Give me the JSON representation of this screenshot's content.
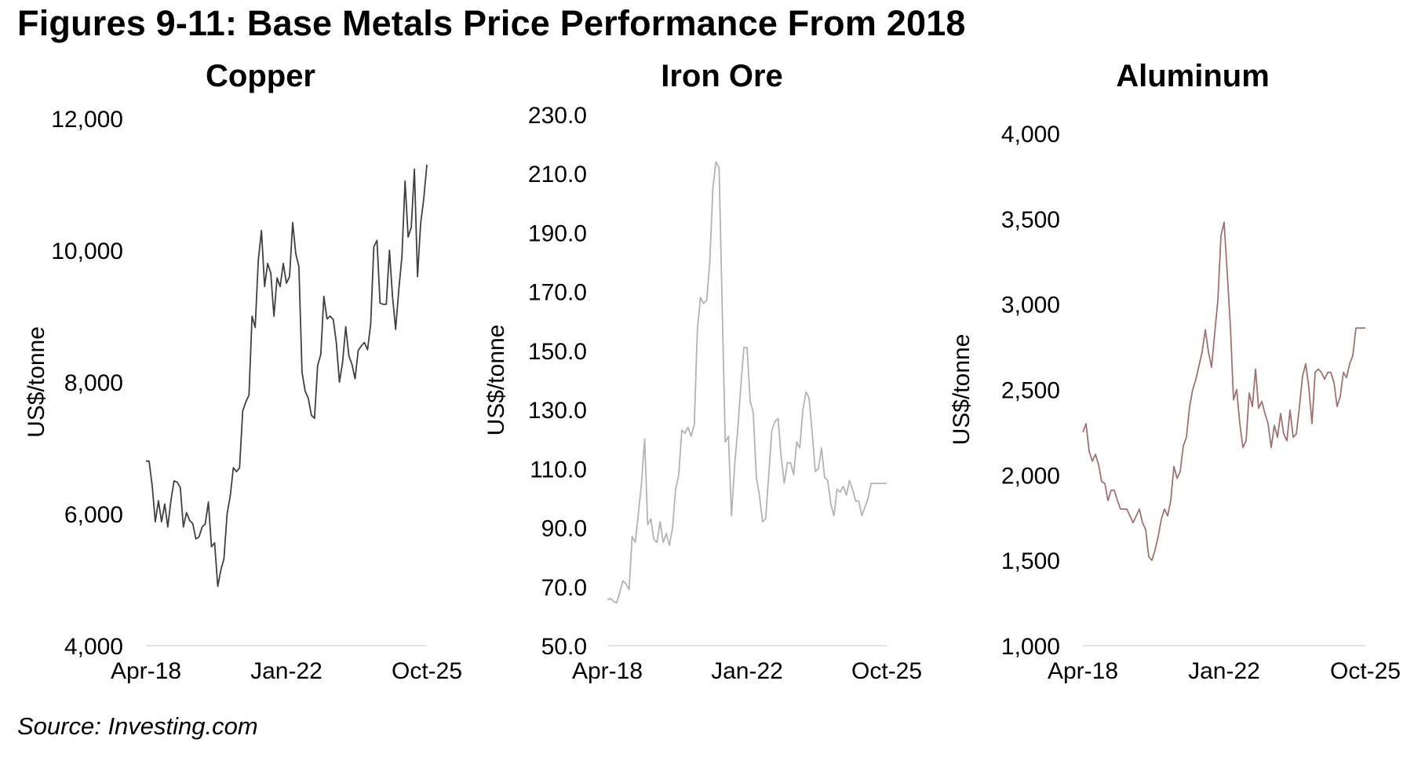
{
  "title": "Figures 9-11: Base Metals Price Performance From 2018",
  "source": "Source: Investing.com",
  "chart_data": [
    {
      "type": "line",
      "title": "Copper",
      "ylabel": "US$/tonne",
      "xlabel": "",
      "color": "#404040",
      "ylim": [
        4000,
        12000
      ],
      "yticks": [
        4000,
        6000,
        8000,
        10000,
        12000
      ],
      "ytick_labels": [
        "4,000",
        "6,000",
        "8,000",
        "10,000",
        "12,000"
      ],
      "xticks": [
        0,
        45,
        90
      ],
      "xtick_labels": [
        "Apr-18",
        "Jan-22",
        "Oct-25"
      ],
      "x_count": 91,
      "values": [
        6800,
        6800,
        6420,
        5880,
        6200,
        5880,
        6150,
        5800,
        6200,
        6500,
        6480,
        6400,
        5800,
        6020,
        5900,
        5850,
        5620,
        5650,
        5800,
        5850,
        6180,
        5500,
        5560,
        4900,
        5150,
        5320,
        6000,
        6270,
        6700,
        6640,
        6700,
        7560,
        7700,
        7800,
        9000,
        8830,
        9850,
        10300,
        9450,
        9800,
        9650,
        9000,
        9580,
        9450,
        9800,
        9500,
        9600,
        10420,
        9950,
        9750,
        8150,
        7860,
        7760,
        7500,
        7450,
        8250,
        8420,
        9300,
        8960,
        9000,
        8950,
        8600,
        8000,
        8300,
        8840,
        8400,
        8270,
        8050,
        8480,
        8550,
        8600,
        8490,
        8880,
        10050,
        10150,
        9200,
        9180,
        9180,
        10000,
        9300,
        8800,
        9400,
        9900,
        11050,
        10200,
        10350,
        11230,
        9600,
        10400,
        10780,
        11300
      ]
    },
    {
      "type": "line",
      "title": "Iron Ore",
      "ylabel": "US$/tonne",
      "xlabel": "",
      "color": "#b3b3b3",
      "ylim": [
        50,
        230
      ],
      "yticks": [
        50,
        70,
        90,
        110,
        130,
        150,
        170,
        190,
        210,
        230
      ],
      "ytick_labels": [
        "50.0",
        "70.0",
        "90.0",
        "110.0",
        "130.0",
        "150.0",
        "170.0",
        "190.0",
        "210.0",
        "230.0"
      ],
      "xticks": [
        0,
        45,
        90
      ],
      "xtick_labels": [
        "Apr-18",
        "Jan-22",
        "Oct-25"
      ],
      "x_count": 91,
      "values": [
        65.5,
        66,
        65,
        64.5,
        68,
        72,
        71,
        69,
        87,
        85,
        95,
        105,
        120,
        91,
        93,
        86,
        85,
        92,
        85,
        88,
        84,
        90,
        103,
        108,
        123,
        122,
        124,
        121,
        125,
        157,
        168,
        166,
        167,
        180,
        205,
        214,
        212,
        164,
        119,
        121,
        94,
        111,
        123,
        138,
        151,
        151,
        133,
        129,
        107,
        101,
        92,
        93,
        108,
        123,
        126,
        127,
        114,
        105,
        112,
        112,
        108,
        119,
        117,
        130,
        136,
        134,
        122,
        109,
        110,
        117,
        107,
        106,
        98,
        94,
        103,
        102,
        104,
        101,
        106,
        103,
        99,
        99,
        94,
        97,
        100,
        105,
        105,
        105,
        105,
        105,
        105
      ]
    },
    {
      "type": "line",
      "title": "Aluminum",
      "ylabel": "US$/tonne",
      "xlabel": "",
      "color": "#a07272",
      "ylim": [
        1000,
        4000
      ],
      "yticks": [
        1000,
        1500,
        2000,
        2500,
        3000,
        3500,
        4000
      ],
      "ytick_labels": [
        "1,000",
        "1,500",
        "2,000",
        "2,500",
        "3,000",
        "3,500",
        "4,000"
      ],
      "xticks": [
        0,
        45,
        90
      ],
      "xtick_labels": [
        "Apr-18",
        "Jan-22",
        "Oct-25"
      ],
      "x_count": 91,
      "values": [
        2250,
        2300,
        2140,
        2080,
        2120,
        2060,
        1960,
        1950,
        1850,
        1910,
        1910,
        1850,
        1800,
        1800,
        1800,
        1760,
        1720,
        1760,
        1800,
        1720,
        1680,
        1520,
        1500,
        1560,
        1640,
        1740,
        1800,
        1760,
        1850,
        2050,
        1980,
        2020,
        2170,
        2220,
        2400,
        2500,
        2560,
        2640,
        2720,
        2850,
        2720,
        2630,
        2830,
        3020,
        3400,
        3480,
        3180,
        2870,
        2440,
        2500,
        2300,
        2160,
        2200,
        2480,
        2400,
        2620,
        2390,
        2430,
        2360,
        2300,
        2160,
        2290,
        2220,
        2360,
        2240,
        2200,
        2380,
        2220,
        2240,
        2400,
        2580,
        2650,
        2510,
        2300,
        2600,
        2620,
        2600,
        2560,
        2600,
        2600,
        2540,
        2400,
        2460,
        2600,
        2570,
        2650,
        2700,
        2860,
        2860,
        2860,
        2860
      ]
    }
  ]
}
